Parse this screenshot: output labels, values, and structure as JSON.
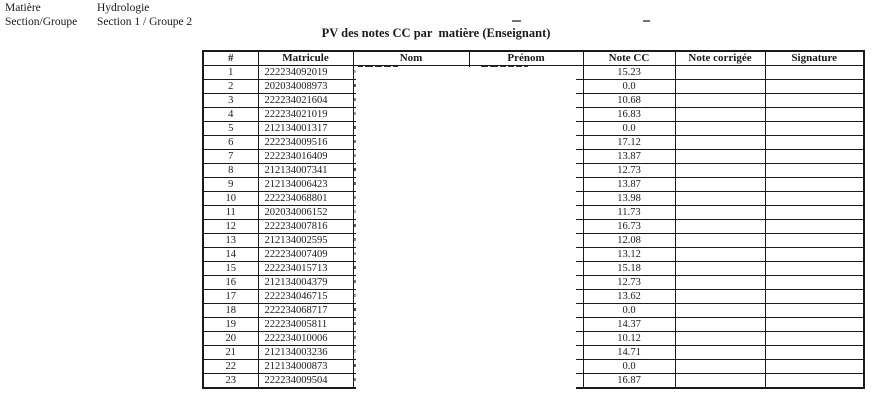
{
  "page": {
    "background": "#ffffff",
    "text_color": "#1a1a1a",
    "border_color": "#1a1a1a"
  },
  "header": {
    "fields": [
      {
        "label": "Matière",
        "value": "Hydrologie"
      },
      {
        "label": "Section/Groupe",
        "value": "Section 1 / Groupe 2"
      }
    ]
  },
  "title": "PV des notes CC par  matière (Enseignant)",
  "table": {
    "columns": [
      "#",
      "Matricule",
      "Nom",
      "Prénom",
      "Note CC",
      "Note corrigée",
      "Signature"
    ],
    "redacted_columns": [
      "Nom",
      "Prénom"
    ],
    "empty_columns": [
      "Note corrigée",
      "Signature"
    ],
    "rows": [
      {
        "num": "1",
        "matricule": "222234092019",
        "note_cc": "15.23"
      },
      {
        "num": "2",
        "matricule": "202034008973",
        "note_cc": "0.0"
      },
      {
        "num": "3",
        "matricule": "222234021604",
        "note_cc": "10.68"
      },
      {
        "num": "4",
        "matricule": "222234021019",
        "note_cc": "16.83"
      },
      {
        "num": "5",
        "matricule": "212134001317",
        "note_cc": "0.0"
      },
      {
        "num": "6",
        "matricule": "222234009516",
        "note_cc": "17.12"
      },
      {
        "num": "7",
        "matricule": "222234016409",
        "note_cc": "13.87"
      },
      {
        "num": "8",
        "matricule": "212134007341",
        "note_cc": "12.73"
      },
      {
        "num": "9",
        "matricule": "212134006423",
        "note_cc": "13.87"
      },
      {
        "num": "10",
        "matricule": "222234068801",
        "note_cc": "13.98"
      },
      {
        "num": "11",
        "matricule": "202034006152",
        "note_cc": "11.73"
      },
      {
        "num": "12",
        "matricule": "222234007816",
        "note_cc": "16.73"
      },
      {
        "num": "13",
        "matricule": "212134002595",
        "note_cc": "12.08"
      },
      {
        "num": "14",
        "matricule": "222234007409",
        "note_cc": "13.12"
      },
      {
        "num": "15",
        "matricule": "222234015713",
        "note_cc": "15.18"
      },
      {
        "num": "16",
        "matricule": "212134004379",
        "note_cc": "12.73"
      },
      {
        "num": "17",
        "matricule": "222234046715",
        "note_cc": "13.62"
      },
      {
        "num": "18",
        "matricule": "222234068717",
        "note_cc": "0.0"
      },
      {
        "num": "19",
        "matricule": "222234005811",
        "note_cc": "14.37"
      },
      {
        "num": "20",
        "matricule": "222234010006",
        "note_cc": "10.12"
      },
      {
        "num": "21",
        "matricule": "212134003236",
        "note_cc": "14.71"
      },
      {
        "num": "22",
        "matricule": "212134000873",
        "note_cc": "0.0"
      },
      {
        "num": "23",
        "matricule": "222234009504",
        "note_cc": "16.87"
      }
    ]
  }
}
